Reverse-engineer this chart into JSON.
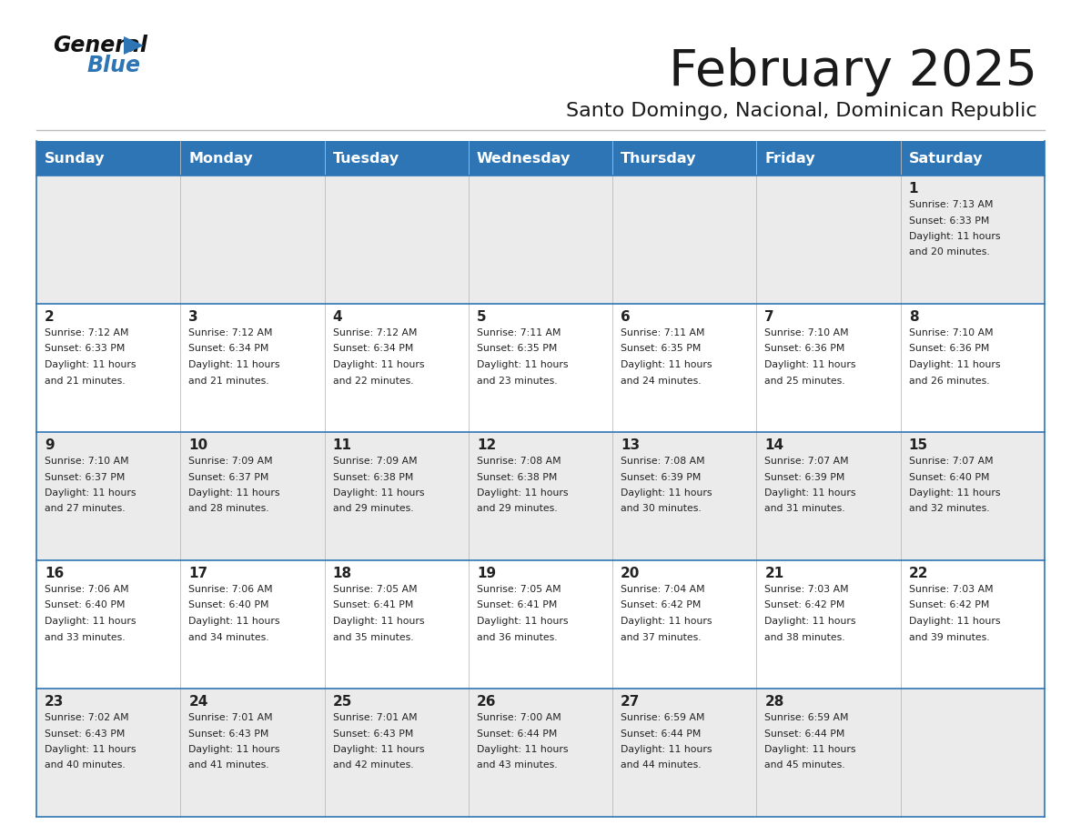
{
  "title": "February 2025",
  "subtitle": "Santo Domingo, Nacional, Dominican Republic",
  "header_color": "#2e75b6",
  "header_text_color": "#ffffff",
  "cell_bg_light": "#ebebeb",
  "cell_bg_white": "#ffffff",
  "text_color": "#222222",
  "border_color": "#2e75b6",
  "days_of_week": [
    "Sunday",
    "Monday",
    "Tuesday",
    "Wednesday",
    "Thursday",
    "Friday",
    "Saturday"
  ],
  "calendar": [
    [
      null,
      null,
      null,
      null,
      null,
      null,
      {
        "day": 1,
        "sunrise": "7:13 AM",
        "sunset": "6:33 PM",
        "daylight_hours": 11,
        "daylight_minutes": 20
      }
    ],
    [
      {
        "day": 2,
        "sunrise": "7:12 AM",
        "sunset": "6:33 PM",
        "daylight_hours": 11,
        "daylight_minutes": 21
      },
      {
        "day": 3,
        "sunrise": "7:12 AM",
        "sunset": "6:34 PM",
        "daylight_hours": 11,
        "daylight_minutes": 21
      },
      {
        "day": 4,
        "sunrise": "7:12 AM",
        "sunset": "6:34 PM",
        "daylight_hours": 11,
        "daylight_minutes": 22
      },
      {
        "day": 5,
        "sunrise": "7:11 AM",
        "sunset": "6:35 PM",
        "daylight_hours": 11,
        "daylight_minutes": 23
      },
      {
        "day": 6,
        "sunrise": "7:11 AM",
        "sunset": "6:35 PM",
        "daylight_hours": 11,
        "daylight_minutes": 24
      },
      {
        "day": 7,
        "sunrise": "7:10 AM",
        "sunset": "6:36 PM",
        "daylight_hours": 11,
        "daylight_minutes": 25
      },
      {
        "day": 8,
        "sunrise": "7:10 AM",
        "sunset": "6:36 PM",
        "daylight_hours": 11,
        "daylight_minutes": 26
      }
    ],
    [
      {
        "day": 9,
        "sunrise": "7:10 AM",
        "sunset": "6:37 PM",
        "daylight_hours": 11,
        "daylight_minutes": 27
      },
      {
        "day": 10,
        "sunrise": "7:09 AM",
        "sunset": "6:37 PM",
        "daylight_hours": 11,
        "daylight_minutes": 28
      },
      {
        "day": 11,
        "sunrise": "7:09 AM",
        "sunset": "6:38 PM",
        "daylight_hours": 11,
        "daylight_minutes": 29
      },
      {
        "day": 12,
        "sunrise": "7:08 AM",
        "sunset": "6:38 PM",
        "daylight_hours": 11,
        "daylight_minutes": 29
      },
      {
        "day": 13,
        "sunrise": "7:08 AM",
        "sunset": "6:39 PM",
        "daylight_hours": 11,
        "daylight_minutes": 30
      },
      {
        "day": 14,
        "sunrise": "7:07 AM",
        "sunset": "6:39 PM",
        "daylight_hours": 11,
        "daylight_minutes": 31
      },
      {
        "day": 15,
        "sunrise": "7:07 AM",
        "sunset": "6:40 PM",
        "daylight_hours": 11,
        "daylight_minutes": 32
      }
    ],
    [
      {
        "day": 16,
        "sunrise": "7:06 AM",
        "sunset": "6:40 PM",
        "daylight_hours": 11,
        "daylight_minutes": 33
      },
      {
        "day": 17,
        "sunrise": "7:06 AM",
        "sunset": "6:40 PM",
        "daylight_hours": 11,
        "daylight_minutes": 34
      },
      {
        "day": 18,
        "sunrise": "7:05 AM",
        "sunset": "6:41 PM",
        "daylight_hours": 11,
        "daylight_minutes": 35
      },
      {
        "day": 19,
        "sunrise": "7:05 AM",
        "sunset": "6:41 PM",
        "daylight_hours": 11,
        "daylight_minutes": 36
      },
      {
        "day": 20,
        "sunrise": "7:04 AM",
        "sunset": "6:42 PM",
        "daylight_hours": 11,
        "daylight_minutes": 37
      },
      {
        "day": 21,
        "sunrise": "7:03 AM",
        "sunset": "6:42 PM",
        "daylight_hours": 11,
        "daylight_minutes": 38
      },
      {
        "day": 22,
        "sunrise": "7:03 AM",
        "sunset": "6:42 PM",
        "daylight_hours": 11,
        "daylight_minutes": 39
      }
    ],
    [
      {
        "day": 23,
        "sunrise": "7:02 AM",
        "sunset": "6:43 PM",
        "daylight_hours": 11,
        "daylight_minutes": 40
      },
      {
        "day": 24,
        "sunrise": "7:01 AM",
        "sunset": "6:43 PM",
        "daylight_hours": 11,
        "daylight_minutes": 41
      },
      {
        "day": 25,
        "sunrise": "7:01 AM",
        "sunset": "6:43 PM",
        "daylight_hours": 11,
        "daylight_minutes": 42
      },
      {
        "day": 26,
        "sunrise": "7:00 AM",
        "sunset": "6:44 PM",
        "daylight_hours": 11,
        "daylight_minutes": 43
      },
      {
        "day": 27,
        "sunrise": "6:59 AM",
        "sunset": "6:44 PM",
        "daylight_hours": 11,
        "daylight_minutes": 44
      },
      {
        "day": 28,
        "sunrise": "6:59 AM",
        "sunset": "6:44 PM",
        "daylight_hours": 11,
        "daylight_minutes": 45
      },
      null
    ]
  ]
}
